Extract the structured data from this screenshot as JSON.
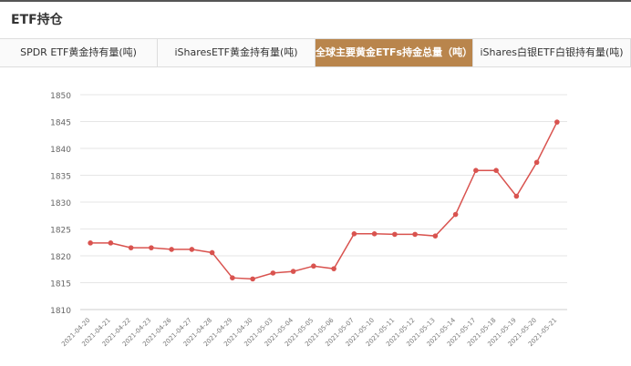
{
  "header": {
    "title": "ETF持仓"
  },
  "tabs": [
    {
      "label": "SPDR ETF黄金持有量(吨)",
      "active": false
    },
    {
      "label": "iSharesETF黄金持有量(吨)",
      "active": false
    },
    {
      "label": "全球主要黄金ETFs持金总量（吨）",
      "active": true
    },
    {
      "label": "iShares白银ETF白银持有量(吨)",
      "active": false
    }
  ],
  "colors": {
    "accent": "#b9854c",
    "line": "#d9534f"
  },
  "chart_data": {
    "type": "line",
    "x": [
      "2021-04-20",
      "2021-04-21",
      "2021-04-22",
      "2021-04-23",
      "2021-04-26",
      "2021-04-27",
      "2021-04-28",
      "2021-04-29",
      "2021-04-30",
      "2021-05-03",
      "2021-05-04",
      "2021-05-05",
      "2021-05-06",
      "2021-05-07",
      "2021-05-10",
      "2021-05-11",
      "2021-05-12",
      "2021-05-13",
      "2021-05-14",
      "2021-05-17",
      "2021-05-18",
      "2021-05-19",
      "2021-05-20",
      "2021-05-21"
    ],
    "values": [
      1822.4,
      1822.4,
      1821.5,
      1821.5,
      1821.2,
      1821.2,
      1820.6,
      1815.9,
      1815.7,
      1816.8,
      1817.1,
      1818.1,
      1817.6,
      1824.1,
      1824.1,
      1824.0,
      1824.0,
      1823.7,
      1827.7,
      1835.9,
      1835.9,
      1831.1,
      1837.4,
      1844.9
    ],
    "ylim": [
      1810,
      1850
    ],
    "yticks": [
      1810,
      1815,
      1820,
      1825,
      1830,
      1835,
      1840,
      1845,
      1850
    ],
    "grid": true
  }
}
